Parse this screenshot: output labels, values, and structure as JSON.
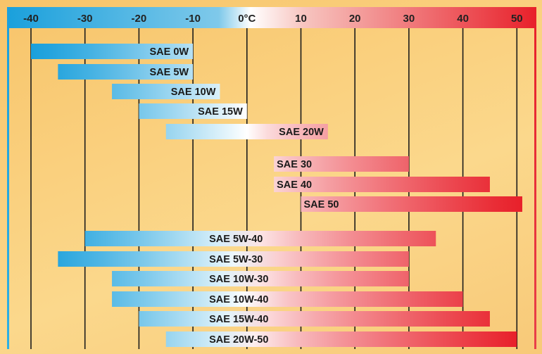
{
  "chart_data": {
    "type": "bar",
    "orientation": "horizontal",
    "x_axis_position": "top",
    "x_ticks": [
      "-40",
      "-30",
      "-20",
      "-10",
      "0°C",
      "10",
      "20",
      "30",
      "40",
      "50"
    ],
    "x_tick_values": [
      -40,
      -30,
      -20,
      -10,
      0,
      10,
      20,
      30,
      40,
      50
    ],
    "xlim": [
      -44,
      54
    ],
    "grid": "vertical",
    "color_scale": {
      "cold": "#1aa0dc",
      "neutral": "#ffffff",
      "hot": "#e8202a"
    },
    "series": [
      {
        "label": "SAE 0W",
        "min": -40,
        "max": -10,
        "group": 1
      },
      {
        "label": "SAE 5W",
        "min": -35,
        "max": -10,
        "group": 1
      },
      {
        "label": "SAE 10W",
        "min": -25,
        "max": -5,
        "group": 1
      },
      {
        "label": "SAE 15W",
        "min": -20,
        "max": 0,
        "group": 1
      },
      {
        "label": "SAE 20W",
        "min": -15,
        "max": 15,
        "group": 1
      },
      {
        "label": "SAE 30",
        "min": 5,
        "max": 30,
        "group": 2
      },
      {
        "label": "SAE 40",
        "min": 5,
        "max": 45,
        "group": 2
      },
      {
        "label": "SAE 50",
        "min": 10,
        "max": 51,
        "group": 2
      },
      {
        "label": "SAE 5W-40",
        "min": -30,
        "max": 35,
        "group": 3
      },
      {
        "label": "SAE 5W-30",
        "min": -35,
        "max": 30,
        "group": 3
      },
      {
        "label": "SAE 10W-30",
        "min": -25,
        "max": 30,
        "group": 3
      },
      {
        "label": "SAE 10W-40",
        "min": -25,
        "max": 40,
        "group": 3
      },
      {
        "label": "SAE 15W-40",
        "min": -20,
        "max": 45,
        "group": 3
      },
      {
        "label": "SAE 20W-50",
        "min": -15,
        "max": 50,
        "group": 3
      }
    ]
  }
}
